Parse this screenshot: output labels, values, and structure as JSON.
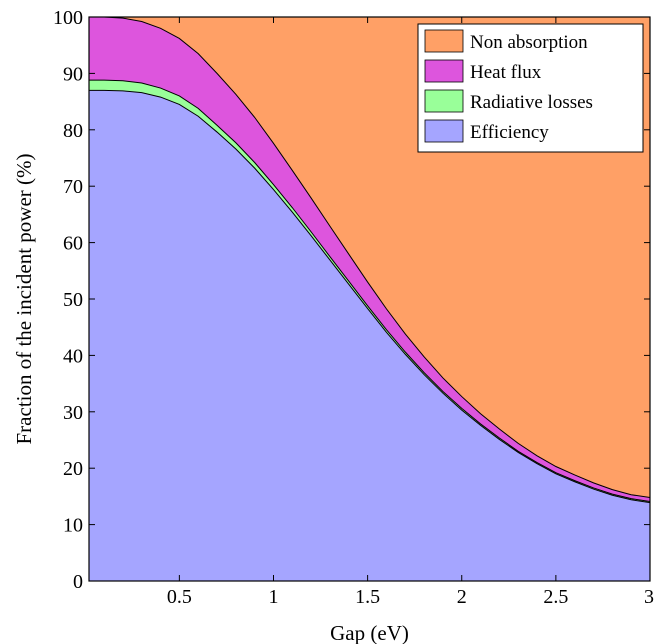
{
  "chart_data": {
    "type": "area",
    "stacked": true,
    "xlabel": "Gap  (eV)",
    "ylabel": "Fraction of the incident power (%)",
    "xlim": [
      0.02,
      3.0
    ],
    "ylim": [
      0,
      100
    ],
    "xticks": [
      "0.5",
      "1",
      "1.5",
      "2",
      "2.5",
      "3"
    ],
    "xtick_values": [
      0.5,
      1,
      1.5,
      2,
      2.5,
      3
    ],
    "yticks": [
      "0",
      "10",
      "20",
      "30",
      "40",
      "50",
      "60",
      "70",
      "80",
      "90",
      "100"
    ],
    "ytick_values": [
      0,
      10,
      20,
      30,
      40,
      50,
      60,
      70,
      80,
      90,
      100
    ],
    "grid": false,
    "legend_position": "top-right",
    "x": [
      0.02,
      0.1,
      0.2,
      0.3,
      0.4,
      0.5,
      0.6,
      0.7,
      0.8,
      0.9,
      1.0,
      1.1,
      1.2,
      1.3,
      1.4,
      1.5,
      1.6,
      1.7,
      1.8,
      1.9,
      2.0,
      2.1,
      2.2,
      2.3,
      2.4,
      2.5,
      2.6,
      2.7,
      2.8,
      2.9,
      3.0
    ],
    "series": [
      {
        "name": "Efficiency",
        "color": "#a5a5ff",
        "values": [
          87.0,
          87.0,
          86.9,
          86.6,
          85.8,
          84.5,
          82.4,
          79.6,
          76.6,
          73.2,
          69.4,
          65.4,
          61.2,
          56.9,
          52.6,
          48.3,
          44.1,
          40.2,
          36.6,
          33.3,
          30.3,
          27.6,
          25.1,
          22.8,
          20.8,
          19.0,
          17.6,
          16.3,
          15.2,
          14.4,
          13.9
        ]
      },
      {
        "name": "Radiative losses",
        "color": "#99ff99",
        "values": [
          1.8,
          1.8,
          1.8,
          1.7,
          1.6,
          1.5,
          1.4,
          1.2,
          1.1,
          1.0,
          0.9,
          0.8,
          0.7,
          0.6,
          0.55,
          0.5,
          0.45,
          0.4,
          0.35,
          0.3,
          0.3,
          0.25,
          0.25,
          0.2,
          0.2,
          0.2,
          0.2,
          0.2,
          0.2,
          0.2,
          0.2
        ]
      },
      {
        "name": "Heat flux",
        "color": "#dd55dd",
        "values": [
          11.2,
          11.2,
          11.1,
          10.9,
          10.6,
          10.2,
          9.7,
          9.2,
          8.6,
          8.0,
          7.3,
          6.6,
          6.0,
          5.4,
          4.8,
          4.2,
          3.7,
          3.2,
          2.8,
          2.4,
          2.1,
          1.8,
          1.6,
          1.4,
          1.2,
          1.1,
          1.0,
          0.9,
          0.8,
          0.7,
          0.7
        ]
      },
      {
        "name": "Non absorption",
        "color": "#ffa066",
        "values": [
          0.0,
          0.0,
          0.2,
          0.8,
          2.0,
          3.8,
          6.5,
          10.0,
          13.7,
          17.8,
          22.4,
          27.2,
          32.1,
          37.1,
          42.05,
          47.0,
          51.75,
          56.2,
          60.25,
          64.0,
          67.3,
          70.35,
          73.05,
          75.6,
          77.8,
          79.7,
          81.2,
          82.6,
          83.8,
          84.7,
          85.2
        ]
      }
    ],
    "legend_order": [
      "Non absorption",
      "Heat flux",
      "Radiative losses",
      "Efficiency"
    ]
  }
}
